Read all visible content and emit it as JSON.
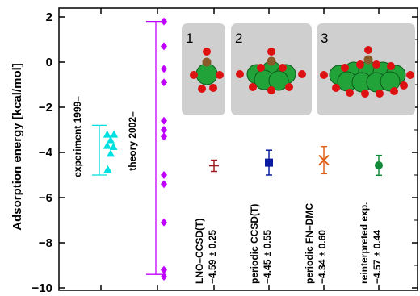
{
  "chart_data": {
    "type": "scatter",
    "ylabel": "Adsorption energy [kcal/mol]",
    "ylim": [
      -10,
      2
    ],
    "yticks": [
      2,
      0,
      -2,
      -4,
      -6,
      -8,
      -10
    ],
    "ytick_labels": [
      "2",
      "0",
      "−2",
      "−4",
      "−6",
      "−8",
      "−10"
    ],
    "groups": [
      {
        "label": "experiment 1999–",
        "color": "#00e0e0",
        "marker": "triangle",
        "range": [
          -5.0,
          -2.8
        ],
        "points": [
          {
            "dx": -0.3,
            "y": -3.2
          },
          {
            "dx": 0.3,
            "y": -3.2
          },
          {
            "dx": 0.0,
            "y": -3.45
          },
          {
            "dx": -0.3,
            "y": -3.7
          },
          {
            "dx": 0.25,
            "y": -3.75
          },
          {
            "dx": 0.0,
            "y": -4.05
          },
          {
            "dx": -0.25,
            "y": -4.75
          }
        ]
      },
      {
        "label": "theory 2002–",
        "color": "#c000ff",
        "marker": "diamond",
        "range": [
          -9.4,
          1.8
        ],
        "points": [
          {
            "dx": 0,
            "y": 1.8
          },
          {
            "dx": 0,
            "y": 0.7
          },
          {
            "dx": 0,
            "y": -0.3
          },
          {
            "dx": 0,
            "y": -0.9
          },
          {
            "dx": 0,
            "y": -2.6
          },
          {
            "dx": 0,
            "y": -3.0
          },
          {
            "dx": 0,
            "y": -3.3
          },
          {
            "dx": 0,
            "y": -5.0
          },
          {
            "dx": 0,
            "y": -5.4
          },
          {
            "dx": 0,
            "y": -7.1
          },
          {
            "dx": 0,
            "y": -9.2
          },
          {
            "dx": 0,
            "y": -9.5
          }
        ]
      }
    ],
    "results": [
      {
        "method": "LNO–CCSD(T)",
        "value_label": "−4.59 ± 0.25",
        "value": -4.59,
        "error": 0.25,
        "color": "#9b1c1c",
        "marker": "plus"
      },
      {
        "method": "periodic CCSD(T)",
        "value_label": "−4.45 ± 0.55",
        "value": -4.45,
        "error": 0.55,
        "color": "#0a1aa0",
        "marker": "square"
      },
      {
        "method": "periodic FN–DMC",
        "value_label": "−4.34 ± 0.60",
        "value": -4.34,
        "error": 0.6,
        "color": "#e0601a",
        "marker": "cross"
      },
      {
        "method": "reinterpreted exp.",
        "value_label": "−4.57 ± 0.44",
        "value": -4.57,
        "error": 0.44,
        "color": "#128a3a",
        "marker": "circle"
      }
    ],
    "inset_panels": [
      "1",
      "2",
      "3"
    ]
  }
}
